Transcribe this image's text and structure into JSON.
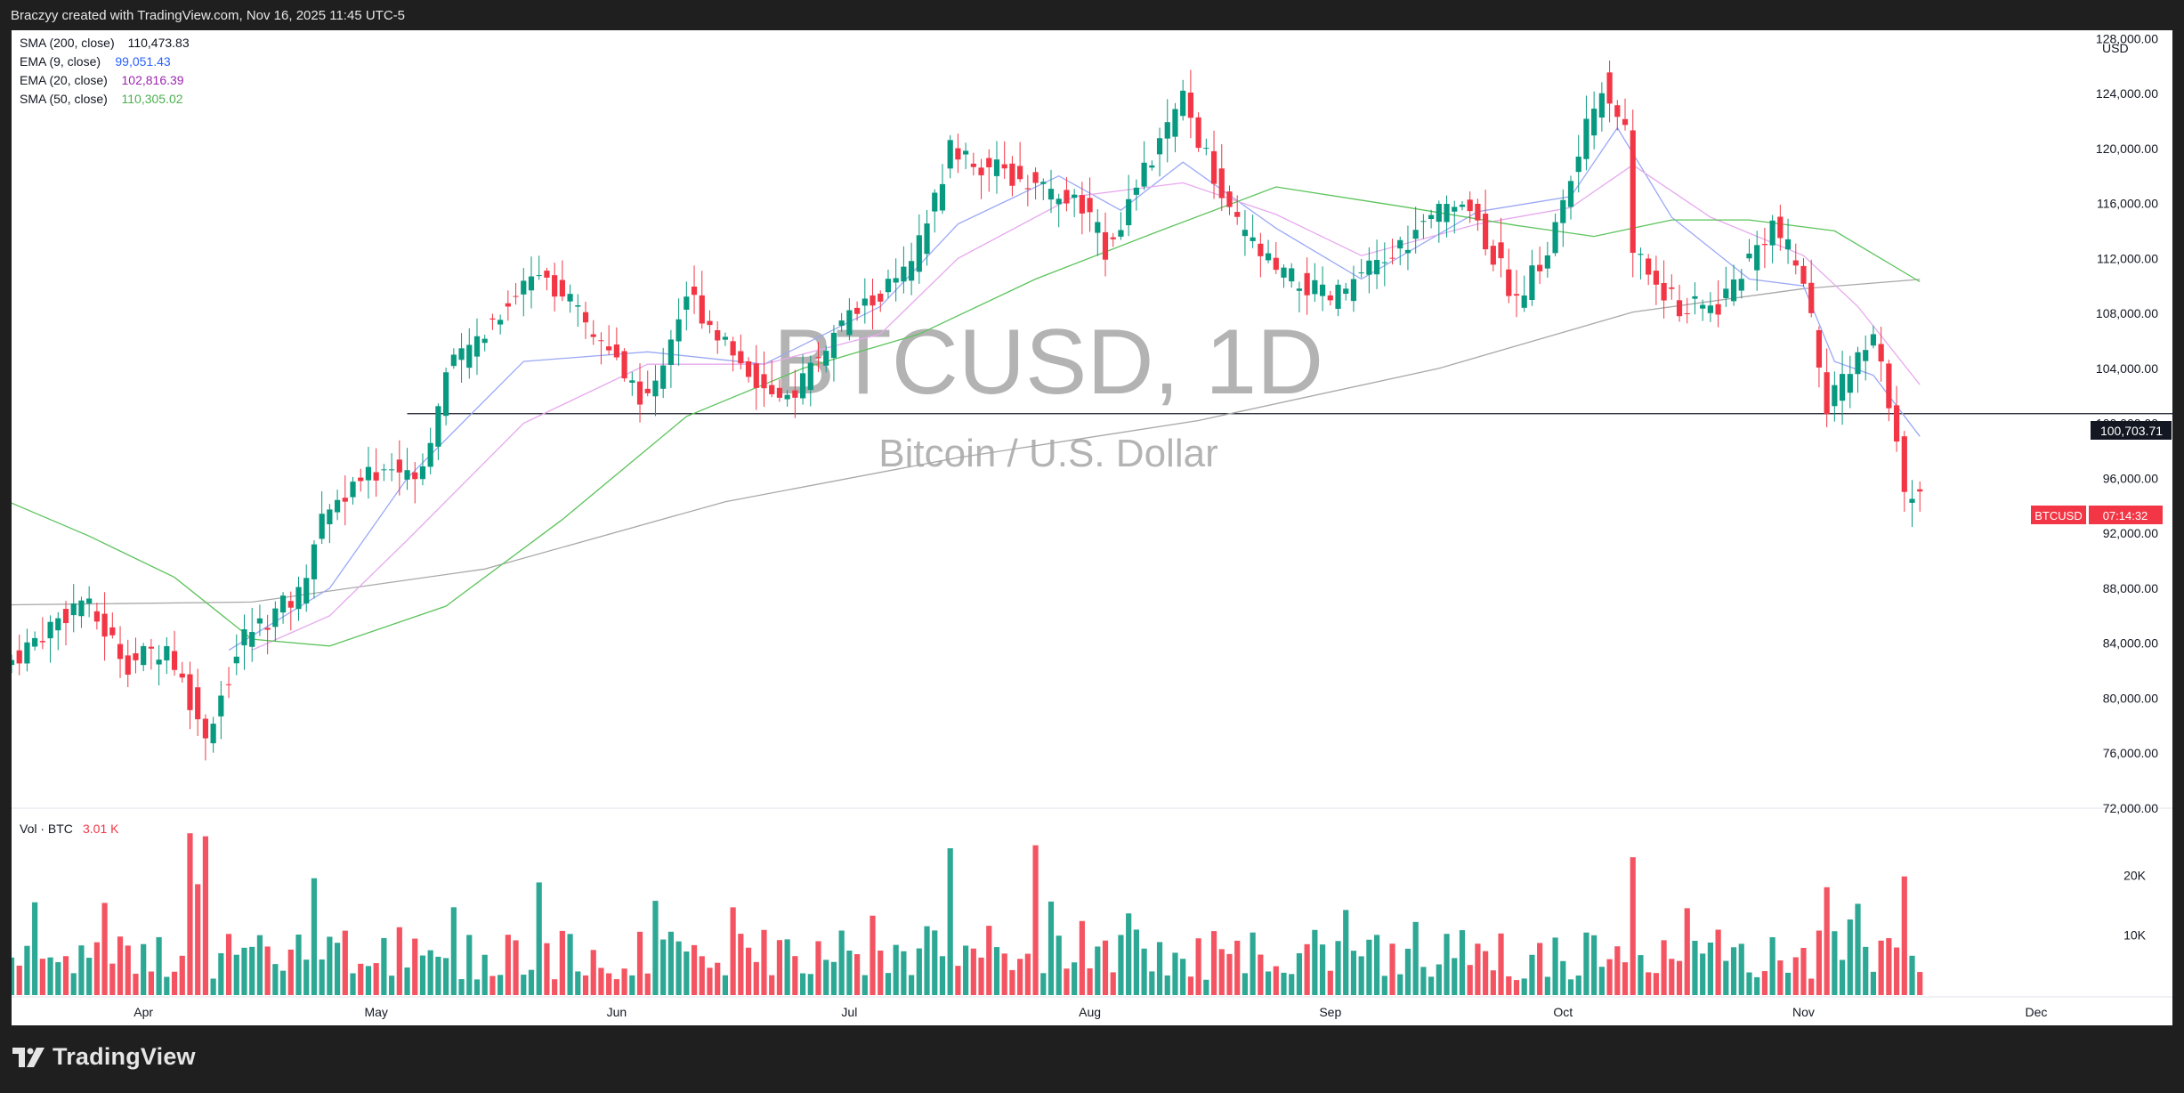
{
  "header": {
    "text": "Braczyy created with TradingView.com, Nov 16, 2025 11:45 UTC-5"
  },
  "footer": {
    "brand": "TradingView"
  },
  "watermark": {
    "symbol": "BTCUSD, 1D",
    "description": "Bitcoin / U.S. Dollar"
  },
  "indicators": [
    {
      "label": "SMA (200, close)",
      "value": "110,473.83",
      "color": "#131722"
    },
    {
      "label": "EMA (9, close)",
      "value": "99,051.43",
      "color": "#2962ff"
    },
    {
      "label": "EMA (20, close)",
      "value": "102,816.39",
      "color": "#9c27b0"
    },
    {
      "label": "SMA (50, close)",
      "value": "110,305.02",
      "color": "#4caf50"
    }
  ],
  "volume_legend": {
    "label": "Vol · BTC",
    "value": "3.01 K",
    "color": "#f23645"
  },
  "price_axis": {
    "currency": "USD",
    "ticks": [
      "128,000.00",
      "124,000.00",
      "120,000.00",
      "116,000.00",
      "112,000.00",
      "108,000.00",
      "104,000.00",
      "100,000.00",
      "96,000.00",
      "92,000.00",
      "88,000.00",
      "84,000.00",
      "80,000.00",
      "76,000.00",
      "72,000.00"
    ],
    "hline_label": "100,703.71",
    "symbol_tag": "BTCUSD",
    "countdown": "07:14:32"
  },
  "volume_axis": {
    "ticks": [
      "20K",
      "10K"
    ]
  },
  "time_axis": {
    "ticks": [
      "Apr",
      "May",
      "Jun",
      "Jul",
      "Aug",
      "Sep",
      "Oct",
      "Nov",
      "Dec"
    ]
  },
  "colors": {
    "up": "#089981",
    "down": "#f23645",
    "sma200": "#a8a8a8",
    "ema9": "#9aa8f5",
    "ema20": "#e6a8ee",
    "sma50": "#5cc35c",
    "hline": "#131722"
  },
  "chart_data": {
    "type": "candlestick",
    "symbol": "BTCUSD",
    "interval": "1D",
    "x_range": [
      "2025-03-15",
      "2025-12-08"
    ],
    "ylim": [
      72000,
      128600
    ],
    "horizontal_line": {
      "start": "2025-05-05",
      "value": 100703.71
    },
    "series": [
      {
        "name": "SMA (200, close)",
        "points": [
          [
            "2025-03-15",
            86800
          ],
          [
            "2025-04-15",
            87000
          ],
          [
            "2025-05-15",
            89400
          ],
          [
            "2025-06-15",
            94300
          ],
          [
            "2025-07-15",
            97500
          ],
          [
            "2025-08-15",
            100200
          ],
          [
            "2025-09-15",
            104000
          ],
          [
            "2025-10-10",
            108100
          ],
          [
            "2025-11-01",
            109800
          ],
          [
            "2025-11-16",
            110474
          ]
        ]
      },
      {
        "name": "EMA (9, close)",
        "points": [
          [
            "2025-04-12",
            83500
          ],
          [
            "2025-04-25",
            88000
          ],
          [
            "2025-05-05",
            96000
          ],
          [
            "2025-05-20",
            104500
          ],
          [
            "2025-06-05",
            105200
          ],
          [
            "2025-06-20",
            104300
          ],
          [
            "2025-07-05",
            108500
          ],
          [
            "2025-07-15",
            114500
          ],
          [
            "2025-07-28",
            118000
          ],
          [
            "2025-08-05",
            115500
          ],
          [
            "2025-08-13",
            119000
          ],
          [
            "2025-08-25",
            114200
          ],
          [
            "2025-09-05",
            110500
          ],
          [
            "2025-09-20",
            115400
          ],
          [
            "2025-10-02",
            116500
          ],
          [
            "2025-10-08",
            121500
          ],
          [
            "2025-10-15",
            115000
          ],
          [
            "2025-10-25",
            110500
          ],
          [
            "2025-11-01",
            110000
          ],
          [
            "2025-11-05",
            104500
          ],
          [
            "2025-11-10",
            103500
          ],
          [
            "2025-11-16",
            99051
          ]
        ]
      },
      {
        "name": "EMA (20, close)",
        "points": [
          [
            "2025-04-15",
            83500
          ],
          [
            "2025-04-25",
            86000
          ],
          [
            "2025-05-05",
            91500
          ],
          [
            "2025-05-20",
            100000
          ],
          [
            "2025-06-05",
            104300
          ],
          [
            "2025-06-20",
            104300
          ],
          [
            "2025-07-05",
            106500
          ],
          [
            "2025-07-15",
            112000
          ],
          [
            "2025-07-30",
            116500
          ],
          [
            "2025-08-13",
            117500
          ],
          [
            "2025-08-25",
            115200
          ],
          [
            "2025-09-05",
            112200
          ],
          [
            "2025-09-20",
            114500
          ],
          [
            "2025-10-02",
            115700
          ],
          [
            "2025-10-10",
            118800
          ],
          [
            "2025-10-20",
            115000
          ],
          [
            "2025-11-01",
            112200
          ],
          [
            "2025-11-08",
            108500
          ],
          [
            "2025-11-16",
            102816
          ]
        ]
      },
      {
        "name": "SMA (50, close)",
        "points": [
          [
            "2025-03-15",
            94200
          ],
          [
            "2025-03-25",
            91800
          ],
          [
            "2025-04-05",
            88800
          ],
          [
            "2025-04-15",
            84300
          ],
          [
            "2025-04-25",
            83800
          ],
          [
            "2025-05-10",
            86700
          ],
          [
            "2025-05-25",
            93000
          ],
          [
            "2025-06-10",
            100500
          ],
          [
            "2025-06-25",
            104000
          ],
          [
            "2025-07-10",
            106500
          ],
          [
            "2025-07-25",
            110500
          ],
          [
            "2025-08-10",
            114000
          ],
          [
            "2025-08-25",
            117200
          ],
          [
            "2025-09-10",
            115800
          ],
          [
            "2025-09-25",
            114400
          ],
          [
            "2025-10-05",
            113600
          ],
          [
            "2025-10-15",
            114800
          ],
          [
            "2025-10-25",
            114800
          ],
          [
            "2025-11-05",
            114000
          ],
          [
            "2025-11-16",
            110305
          ]
        ]
      }
    ],
    "volume": {
      "ylim": [
        0,
        30000
      ],
      "unit": "BTC"
    }
  }
}
